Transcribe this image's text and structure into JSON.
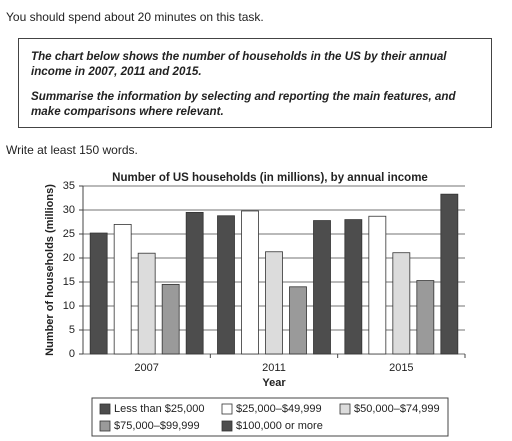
{
  "instruction": "You should spend about 20 minutes on this task.",
  "task": {
    "paragraphs": [
      "The chart below shows the number of households in the US by their annual income in 2007, 2011 and 2015.",
      "Summarise the information by selecting and reporting the main features, and make comparisons where relevant."
    ]
  },
  "word_note": "Write at least 150 words.",
  "chart_data": {
    "type": "bar",
    "title": "Number of US households (in millions), by annual income",
    "x_label": "Year",
    "y_label": "Number of households (millions)",
    "categories": [
      "2007",
      "2011",
      "2015"
    ],
    "series": [
      {
        "name": "Less than $25,000",
        "color": "#4d4d4d",
        "values": [
          25.2,
          28.8,
          28
        ]
      },
      {
        "name": "$25,000–$49,999",
        "color": "#ffffff",
        "values": [
          27,
          29.8,
          28.7
        ]
      },
      {
        "name": "$50,000–$74,999",
        "color": "#dcdcdc",
        "values": [
          21,
          21.3,
          21.1
        ]
      },
      {
        "name": "$75,000–$99,999",
        "color": "#9a9a9a",
        "values": [
          14.5,
          14,
          15.3
        ]
      },
      {
        "name": "$100,000 or more",
        "color": "#4d4d4d",
        "values": [
          29.5,
          27.8,
          33.3
        ]
      }
    ],
    "ylim": [
      0,
      35
    ],
    "yticks": [
      0,
      5,
      10,
      15,
      20,
      25,
      30,
      35
    ],
    "grid": true
  }
}
